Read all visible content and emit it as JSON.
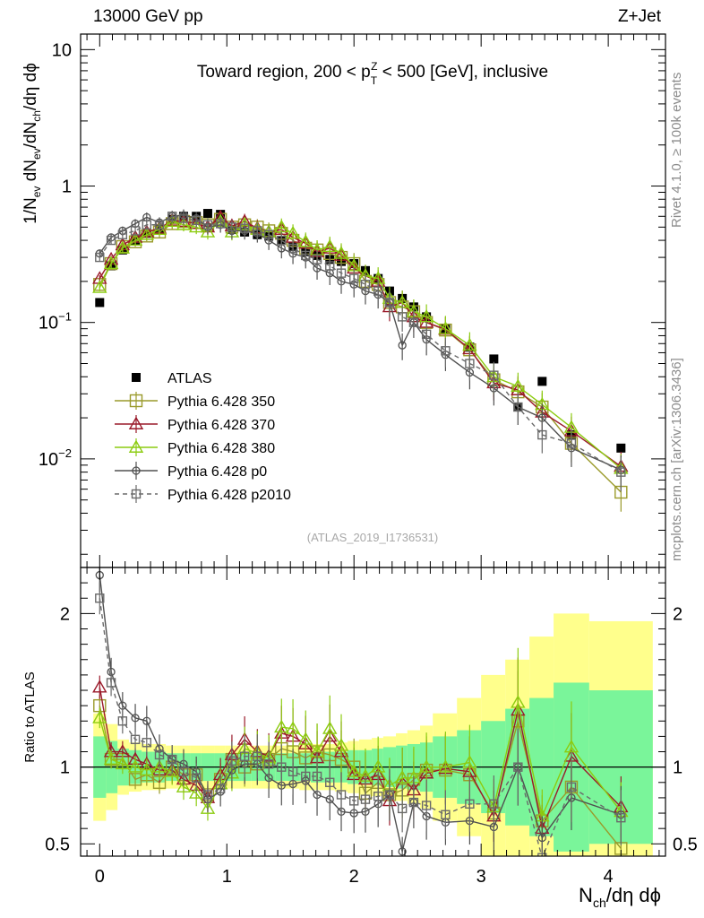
{
  "header": {
    "energy": "13000 GeV pp",
    "process": "Z+Jet"
  },
  "side_labels": {
    "rivet": "Rivet 4.1.0, ≥ 100k events",
    "source": "mcplots.cern.ch [arXiv:1306.3436]"
  },
  "colors": {
    "atlas": "#000000",
    "p350": "#9a9a2a",
    "p370": "#9a1a2a",
    "p380": "#8ccc10",
    "p0": "#505050",
    "p2010": "#6a6a6a",
    "band_inner": "#7af59a",
    "band_outer": "#ffff8c"
  },
  "chart_data": [
    {
      "type": "line",
      "scale": "log",
      "title": "Toward region, 200 < p_T^Z < 500 [GeV], inclusive",
      "title_parts": {
        "pre": "Toward region, 200 < p",
        "sup": "Z",
        "sub": "T",
        "post": " < 500 [GeV], inclusive"
      },
      "ylabel": "1/N_ev dN_ev/dN_ch/dη dϕ",
      "xlabel": "N_ch/dη dϕ",
      "watermark": "(ATLAS_2019_I1736531)",
      "xlim": [
        -0.15,
        4.45
      ],
      "ylim": [
        0.0016,
        13
      ],
      "x_ticks": [
        "0",
        "1",
        "2",
        "3",
        "4"
      ],
      "y_ticks": [
        "10⁻²",
        "10⁻¹",
        "1",
        "10"
      ],
      "x": [
        0,
        0.09,
        0.18,
        0.28,
        0.37,
        0.47,
        0.57,
        0.66,
        0.76,
        0.85,
        0.95,
        1.04,
        1.14,
        1.24,
        1.33,
        1.43,
        1.52,
        1.62,
        1.71,
        1.81,
        1.9,
        2.0,
        2.09,
        2.19,
        2.28,
        2.38,
        2.47,
        2.57,
        2.72,
        2.91,
        3.1,
        3.29,
        3.48,
        3.71,
        4.1
      ],
      "series": [
        {
          "name": "ATLAS",
          "key": "atlas",
          "values": [
            0.14,
            0.26,
            0.34,
            0.4,
            0.45,
            0.48,
            0.57,
            0.6,
            0.6,
            0.63,
            0.62,
            0.48,
            0.46,
            0.44,
            0.43,
            0.4,
            0.36,
            0.33,
            0.31,
            0.29,
            0.28,
            0.27,
            0.24,
            0.21,
            0.17,
            0.15,
            0.13,
            0.11,
            0.09,
            0.066,
            0.054,
            0.024,
            0.037,
            0.015,
            0.012
          ]
        },
        {
          "name": "Pythia 6.428 350",
          "key": "p350",
          "values": [
            0.19,
            0.27,
            0.36,
            0.39,
            0.43,
            0.46,
            0.53,
            0.55,
            0.54,
            0.52,
            0.57,
            0.5,
            0.52,
            0.5,
            0.47,
            0.45,
            0.4,
            0.35,
            0.34,
            0.32,
            0.3,
            0.27,
            0.2,
            0.19,
            0.14,
            0.13,
            0.12,
            0.1,
            0.088,
            0.063,
            0.038,
            0.031,
            0.024,
            0.013,
            0.0057
          ]
        },
        {
          "name": "Pythia 6.428 370",
          "key": "p370",
          "values": [
            0.21,
            0.29,
            0.37,
            0.42,
            0.46,
            0.49,
            0.56,
            0.55,
            0.53,
            0.5,
            0.59,
            0.51,
            0.55,
            0.49,
            0.46,
            0.48,
            0.42,
            0.38,
            0.33,
            0.35,
            0.31,
            0.25,
            0.22,
            0.2,
            0.13,
            0.14,
            0.11,
            0.1,
            0.089,
            0.064,
            0.036,
            0.032,
            0.022,
            0.016,
            0.0088
          ]
        },
        {
          "name": "Pythia 6.428 380",
          "key": "p380",
          "values": [
            0.18,
            0.27,
            0.35,
            0.4,
            0.44,
            0.48,
            0.55,
            0.52,
            0.5,
            0.46,
            0.55,
            0.46,
            0.52,
            0.48,
            0.46,
            0.5,
            0.45,
            0.39,
            0.34,
            0.36,
            0.32,
            0.26,
            0.22,
            0.21,
            0.15,
            0.14,
            0.12,
            0.11,
            0.09,
            0.068,
            0.04,
            0.034,
            0.025,
            0.017,
            0.0085
          ]
        },
        {
          "name": "Pythia 6.428 p0",
          "key": "p0",
          "values": [
            0.32,
            0.42,
            0.47,
            0.53,
            0.59,
            0.54,
            0.6,
            0.61,
            0.58,
            0.5,
            0.52,
            0.47,
            0.47,
            0.45,
            0.4,
            0.35,
            0.32,
            0.3,
            0.25,
            0.23,
            0.2,
            0.19,
            0.17,
            0.16,
            0.14,
            0.068,
            0.1,
            0.075,
            0.058,
            0.043,
            0.033,
            0.024,
            0.02,
            0.012,
            0.0083
          ]
        },
        {
          "name": "Pythia 6.428 p2010",
          "key": "p2010",
          "values": [
            0.3,
            0.4,
            0.44,
            0.47,
            0.52,
            0.52,
            0.6,
            0.58,
            0.56,
            0.52,
            0.53,
            0.5,
            0.49,
            0.47,
            0.44,
            0.4,
            0.35,
            0.31,
            0.29,
            0.26,
            0.23,
            0.21,
            0.19,
            0.17,
            0.14,
            0.11,
            0.1,
            0.082,
            0.062,
            0.05,
            0.041,
            0.024,
            0.015,
            0.013,
            0.008
          ],
          "dashed": true
        }
      ],
      "legend": [
        "ATLAS",
        "Pythia 6.428 350",
        "Pythia 6.428 370",
        "Pythia 6.428 380",
        "Pythia 6.428 p0",
        "Pythia 6.428 p2010"
      ],
      "legend_position": "lower-left"
    },
    {
      "type": "line",
      "title": "",
      "ylabel": "Ratio to ATLAS",
      "ylim": [
        0.42,
        2.3
      ],
      "y_ticks": [
        "0.5",
        "1",
        "2"
      ],
      "reference": 1,
      "band_edges": [
        -0.05,
        0.05,
        0.14,
        0.23,
        0.33,
        0.42,
        0.52,
        0.61,
        0.71,
        0.8,
        0.9,
        0.99,
        1.09,
        1.19,
        1.28,
        1.38,
        1.47,
        1.57,
        1.66,
        1.76,
        1.85,
        1.95,
        2.04,
        2.14,
        2.23,
        2.33,
        2.42,
        2.52,
        2.62,
        2.81,
        3.0,
        3.19,
        3.38,
        3.57,
        3.85,
        4.35
      ],
      "band_inner": [
        0.2,
        0.17,
        0.12,
        0.11,
        0.1,
        0.1,
        0.09,
        0.09,
        0.09,
        0.09,
        0.09,
        0.09,
        0.09,
        0.09,
        0.09,
        0.09,
        0.09,
        0.09,
        0.1,
        0.1,
        0.1,
        0.11,
        0.11,
        0.12,
        0.13,
        0.14,
        0.15,
        0.16,
        0.2,
        0.24,
        0.3,
        0.38,
        0.45,
        0.55,
        0.5
      ],
      "band_outer": [
        0.35,
        0.28,
        0.18,
        0.16,
        0.15,
        0.15,
        0.14,
        0.14,
        0.14,
        0.14,
        0.14,
        0.14,
        0.14,
        0.14,
        0.14,
        0.14,
        0.14,
        0.15,
        0.15,
        0.15,
        0.16,
        0.17,
        0.18,
        0.19,
        0.2,
        0.22,
        0.24,
        0.27,
        0.35,
        0.45,
        0.6,
        0.7,
        0.85,
        1.0,
        0.95
      ],
      "ratios": {
        "p350": [
          1.4,
          1.05,
          1.05,
          0.92,
          0.95,
          0.9,
          1.0,
          0.95,
          0.95,
          0.82,
          0.92,
          1.05,
          1.0,
          1.02,
          1.05,
          1.12,
          1.1,
          1.06,
          1.1,
          1.08,
          1.05,
          1.0,
          0.83,
          0.9,
          0.82,
          0.85,
          0.92,
          0.98,
          0.98,
          0.95,
          0.7,
          1.3,
          0.65,
          0.87,
          0.47
        ]
      },
      "ratio_series": [
        {
          "key": "p350",
          "values": [
            1.4,
            1.05,
            1.05,
            0.92,
            0.95,
            0.9,
            1.0,
            0.95,
            0.95,
            0.82,
            0.92,
            1.05,
            1.0,
            1.02,
            1.05,
            1.12,
            1.1,
            1.06,
            1.1,
            1.08,
            1.05,
            1.0,
            0.83,
            0.9,
            0.82,
            0.85,
            0.92,
            0.98,
            0.98,
            0.95,
            0.7,
            1.3,
            0.65,
            0.87,
            0.47
          ]
        },
        {
          "key": "p370",
          "values": [
            1.52,
            1.1,
            1.1,
            1.05,
            1.02,
            0.98,
            0.98,
            0.92,
            0.88,
            0.8,
            0.95,
            1.08,
            1.18,
            1.1,
            1.07,
            1.22,
            1.2,
            1.15,
            1.06,
            1.2,
            1.1,
            0.95,
            0.92,
            0.95,
            0.78,
            0.93,
            0.85,
            0.96,
            0.99,
            0.97,
            0.68,
            1.37,
            0.6,
            1.07,
            0.74
          ]
        },
        {
          "key": "p380",
          "values": [
            1.32,
            1.05,
            1.02,
            1.0,
            0.98,
            1.0,
            0.97,
            0.87,
            0.83,
            0.73,
            0.89,
            0.96,
            1.12,
            1.09,
            1.06,
            1.26,
            1.25,
            1.18,
            1.1,
            1.25,
            1.14,
            0.97,
            0.94,
            1.0,
            0.88,
            0.93,
            0.93,
            1.0,
            1.0,
            1.03,
            0.74,
            1.42,
            0.68,
            1.13,
            0.71
          ]
        },
        {
          "key": "p0",
          "values": [
            2.25,
            1.62,
            1.4,
            1.32,
            1.3,
            1.12,
            1.05,
            1.02,
            0.97,
            0.79,
            0.84,
            0.98,
            1.02,
            1.02,
            0.93,
            0.88,
            0.89,
            0.91,
            0.82,
            0.79,
            0.71,
            0.7,
            0.71,
            0.76,
            0.82,
            0.45,
            0.77,
            0.68,
            0.64,
            0.65,
            0.61,
            1.0,
            0.54,
            0.8,
            0.69
          ]
        },
        {
          "key": "p2010",
          "values": [
            2.1,
            1.55,
            1.3,
            1.18,
            1.16,
            1.08,
            1.05,
            0.97,
            0.93,
            0.82,
            0.86,
            1.04,
            1.07,
            1.07,
            1.02,
            1.0,
            0.97,
            0.94,
            0.94,
            0.9,
            0.82,
            0.78,
            0.79,
            0.81,
            0.82,
            0.73,
            0.77,
            0.75,
            0.69,
            0.76,
            0.76,
            1.0,
            0.41,
            0.87,
            0.67
          ],
          "dashed": true
        }
      ],
      "x_ticks": [
        "0",
        "1",
        "2",
        "3",
        "4"
      ]
    }
  ]
}
